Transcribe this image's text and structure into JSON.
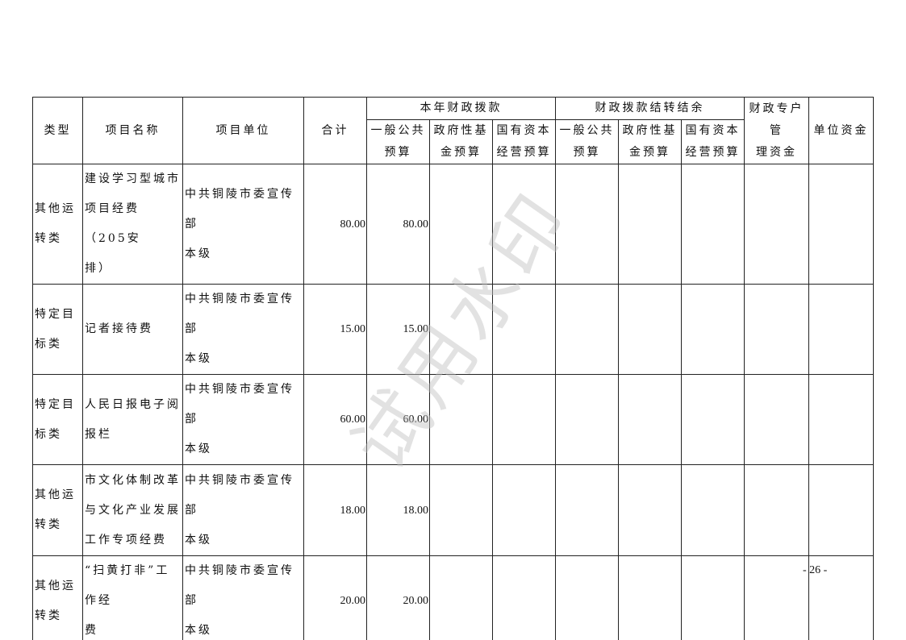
{
  "table": {
    "headers": {
      "type": "类型",
      "name": "项目名称",
      "unit": "项目单位",
      "total": "合计",
      "group1": "本年财政拨款",
      "group2": "财政拨款结转结余",
      "special": "财政专户管\n理资金",
      "own": "单位资金",
      "sub": [
        "一般公共\n预算",
        "政府性基\n金预算",
        "国有资本\n经营预算",
        "一般公共\n预算",
        "政府性基\n金预算",
        "国有资本\n经营预算"
      ]
    },
    "rows": [
      {
        "type": "其他运\n转类",
        "name": "建设学习型城市\n项目经费（205安\n排）",
        "unit": "中共铜陵市委宣传部\n本级",
        "total": "80.00",
        "general": "80.00"
      },
      {
        "type": "特定目\n标类",
        "name": "记者接待费",
        "unit": "中共铜陵市委宣传部\n本级",
        "total": "15.00",
        "general": "15.00"
      },
      {
        "type": "特定目\n标类",
        "name": "人民日报电子阅\n报栏",
        "unit": "中共铜陵市委宣传部\n本级",
        "total": "60.00",
        "general": "60.00"
      },
      {
        "type": "其他运\n转类",
        "name": "市文化体制改革\n与文化产业发展\n工作专项经费",
        "unit": "中共铜陵市委宣传部\n本级",
        "total": "18.00",
        "general": "18.00"
      },
      {
        "type": "其他运\n转类",
        "name": "“扫黄打非”工作经\n费",
        "unit": "中共铜陵市委宣传部\n本级",
        "total": "20.00",
        "general": "20.00"
      }
    ]
  },
  "watermark": "试用水印",
  "page_number": "- 26 -"
}
